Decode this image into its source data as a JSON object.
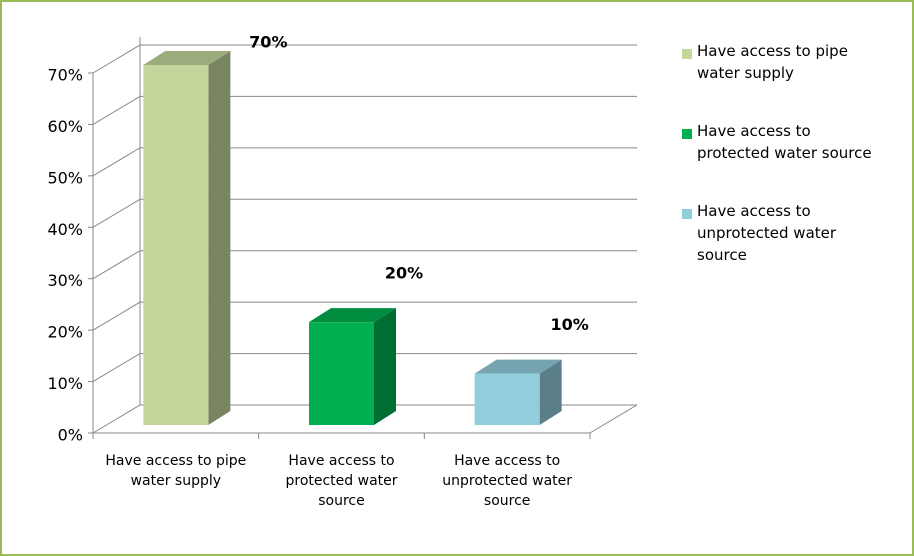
{
  "chart_data": {
    "type": "bar3d",
    "categories": [
      "Have access to pipe water supply",
      "Have access to protected water source",
      "Have access to unprotected water source"
    ],
    "values": [
      70,
      20,
      10
    ],
    "value_labels": [
      "70%",
      "20%",
      "10%"
    ],
    "colors": [
      "#c3d69b",
      "#00b050",
      "#92cddc"
    ],
    "ylim": [
      0,
      70
    ],
    "yticks": [
      {
        "value": 0,
        "label": "0%"
      },
      {
        "value": 10,
        "label": "10%"
      },
      {
        "value": 20,
        "label": "20%"
      },
      {
        "value": 30,
        "label": "30%"
      },
      {
        "value": 40,
        "label": "40%"
      },
      {
        "value": 50,
        "label": "50%"
      },
      {
        "value": 60,
        "label": "60%"
      },
      {
        "value": 70,
        "label": "70%"
      }
    ],
    "grid": true,
    "legend": "right"
  }
}
